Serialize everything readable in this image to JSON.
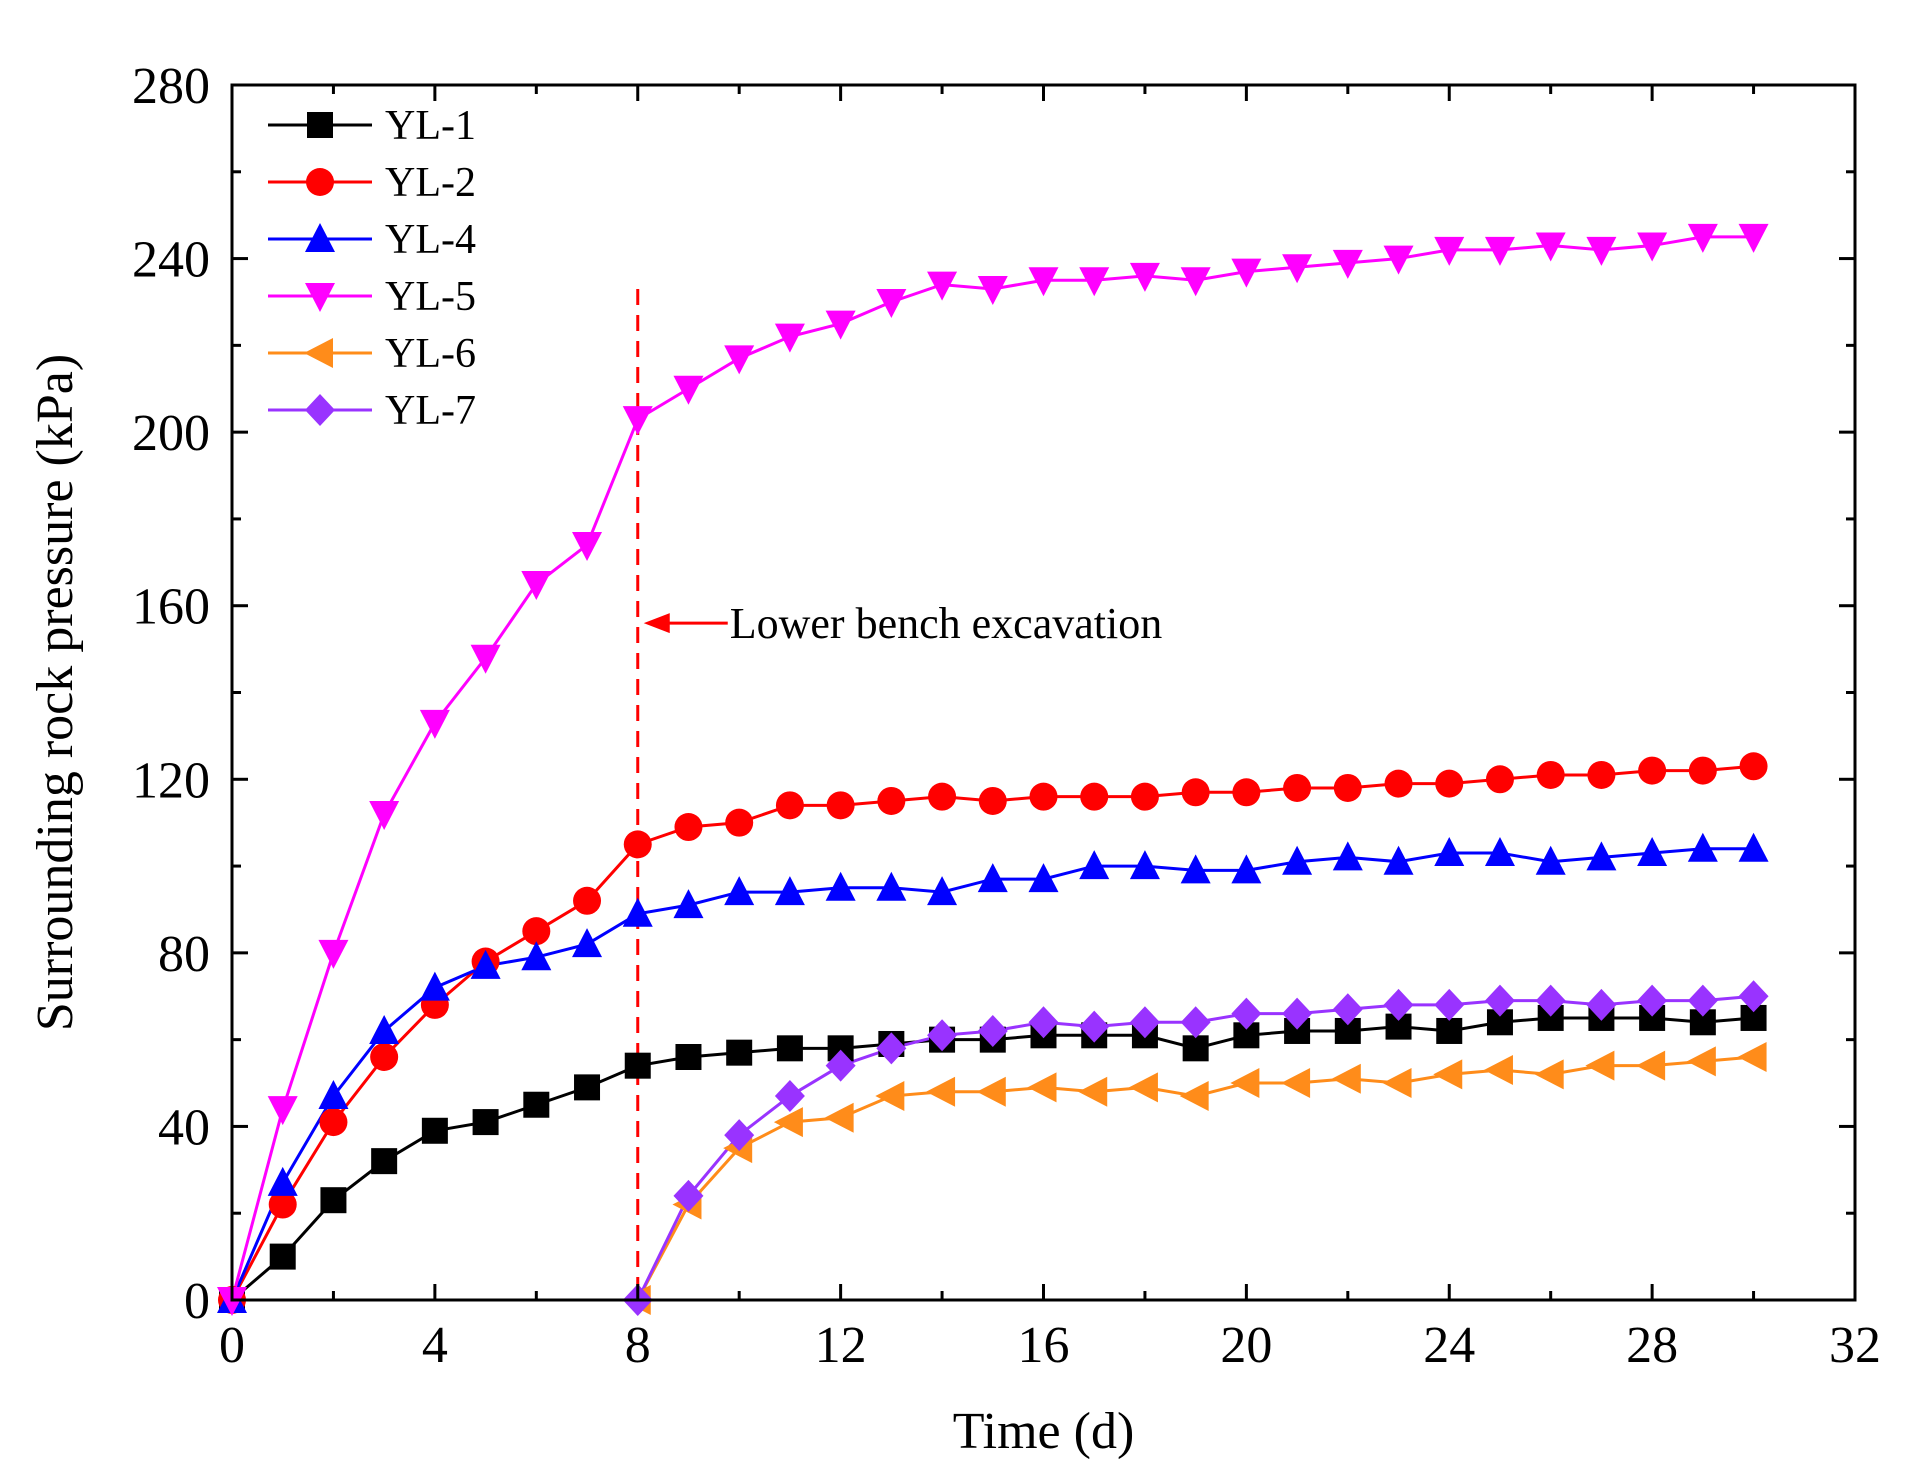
{
  "chart_data": {
    "type": "line",
    "title": "",
    "xlabel": "Time (d)",
    "ylabel": "Surrounding rock pressure (kPa)",
    "xlim": [
      0,
      32
    ],
    "ylim": [
      0,
      280
    ],
    "xticks": [
      0,
      4,
      8,
      12,
      16,
      20,
      24,
      28,
      32
    ],
    "yticks": [
      0,
      40,
      80,
      120,
      160,
      200,
      240,
      280
    ],
    "xtick_labels": [
      "0",
      "4",
      "8",
      "12",
      "16",
      "20",
      "24",
      "28",
      "32"
    ],
    "ytick_labels": [
      "0",
      "40",
      "80",
      "120",
      "160",
      "200",
      "240",
      "280"
    ],
    "grid": false,
    "legend_position": "top-left",
    "annotation": {
      "text": "Lower bench excavation",
      "x": 8,
      "y": 156,
      "color": "#ff0000"
    },
    "series": [
      {
        "name": "YL-1",
        "color": "#000000",
        "marker": "square",
        "x": [
          0,
          1,
          2,
          3,
          4,
          5,
          6,
          7,
          8,
          9,
          10,
          11,
          12,
          13,
          14,
          15,
          16,
          17,
          18,
          19,
          20,
          21,
          22,
          23,
          24,
          25,
          26,
          27,
          28,
          29,
          30
        ],
        "values": [
          0,
          10,
          23,
          32,
          39,
          41,
          45,
          49,
          54,
          56,
          57,
          58,
          58,
          59,
          60,
          60,
          61,
          61,
          61,
          58,
          61,
          62,
          62,
          63,
          62,
          64,
          65,
          65,
          65,
          64,
          65
        ]
      },
      {
        "name": "YL-2",
        "color": "#ff0000",
        "marker": "circle",
        "x": [
          0,
          1,
          2,
          3,
          4,
          5,
          6,
          7,
          8,
          9,
          10,
          11,
          12,
          13,
          14,
          15,
          16,
          17,
          18,
          19,
          20,
          21,
          22,
          23,
          24,
          25,
          26,
          27,
          28,
          29,
          30
        ],
        "values": [
          0,
          22,
          41,
          56,
          68,
          78,
          85,
          92,
          105,
          109,
          110,
          114,
          114,
          115,
          116,
          115,
          116,
          116,
          116,
          117,
          117,
          118,
          118,
          119,
          119,
          120,
          121,
          121,
          122,
          122,
          123
        ]
      },
      {
        "name": "YL-4",
        "color": "#0000ff",
        "marker": "triangle-up",
        "x": [
          0,
          1,
          2,
          3,
          4,
          5,
          6,
          7,
          8,
          9,
          10,
          11,
          12,
          13,
          14,
          15,
          16,
          17,
          18,
          19,
          20,
          21,
          22,
          23,
          24,
          25,
          26,
          27,
          28,
          29,
          30
        ],
        "values": [
          0,
          27,
          47,
          62,
          72,
          77,
          79,
          82,
          89,
          91,
          94,
          94,
          95,
          95,
          94,
          97,
          97,
          100,
          100,
          99,
          99,
          101,
          102,
          101,
          103,
          103,
          101,
          102,
          103,
          104,
          104
        ]
      },
      {
        "name": "YL-5",
        "color": "#ff00ff",
        "marker": "triangle-down",
        "x": [
          0,
          1,
          2,
          3,
          4,
          5,
          6,
          7,
          8,
          9,
          10,
          11,
          12,
          13,
          14,
          15,
          16,
          17,
          18,
          19,
          20,
          21,
          22,
          23,
          24,
          25,
          26,
          27,
          28,
          29,
          30
        ],
        "values": [
          0,
          44,
          80,
          112,
          133,
          148,
          165,
          174,
          203,
          210,
          217,
          222,
          225,
          230,
          234,
          233,
          235,
          235,
          236,
          235,
          237,
          238,
          239,
          240,
          242,
          242,
          243,
          242,
          243,
          245,
          245
        ]
      },
      {
        "name": "YL-6",
        "color": "#ff8c1a",
        "marker": "triangle-left",
        "x": [
          8,
          9,
          10,
          11,
          12,
          13,
          14,
          15,
          16,
          17,
          18,
          19,
          20,
          21,
          22,
          23,
          24,
          25,
          26,
          27,
          28,
          29,
          30
        ],
        "values": [
          0,
          22,
          35,
          41,
          42,
          47,
          48,
          48,
          49,
          48,
          49,
          47,
          50,
          50,
          51,
          50,
          52,
          53,
          52,
          54,
          54,
          55,
          56
        ]
      },
      {
        "name": "YL-7",
        "color": "#9933ff",
        "marker": "diamond",
        "x": [
          8,
          9,
          10,
          11,
          12,
          13,
          14,
          15,
          16,
          17,
          18,
          19,
          20,
          21,
          22,
          23,
          24,
          25,
          26,
          27,
          28,
          29,
          30
        ],
        "values": [
          0,
          24,
          38,
          47,
          54,
          58,
          61,
          62,
          64,
          63,
          64,
          64,
          66,
          66,
          67,
          68,
          68,
          69,
          69,
          68,
          69,
          69,
          70
        ]
      }
    ]
  }
}
